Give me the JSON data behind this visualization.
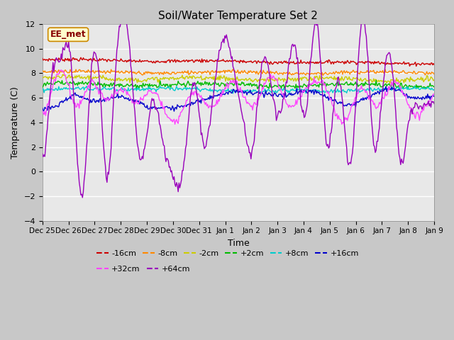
{
  "title": "Soil/Water Temperature Set 2",
  "xlabel": "Time",
  "ylabel": "Temperature (C)",
  "ylim": [
    -4,
    12
  ],
  "yticks": [
    -4,
    -2,
    0,
    2,
    4,
    6,
    8,
    10,
    12
  ],
  "fig_bg": "#c8c8c8",
  "plot_bg": "#e8e8e8",
  "annotation_text": "EE_met",
  "annotation_bg": "#ffffcc",
  "annotation_border": "#cc8800",
  "colors": {
    "-16cm": "#cc0000",
    "-8cm": "#ff8800",
    "-2cm": "#cccc00",
    "+2cm": "#00bb00",
    "+8cm": "#00cccc",
    "+16cm": "#0000cc",
    "+32cm": "#ff44ff",
    "+64cm": "#9900bb"
  },
  "xtick_labels": [
    "Dec 25",
    "Dec 26",
    "Dec 27",
    "Dec 28",
    "Dec 29",
    "Dec 30",
    "Dec 31",
    "Jan 1",
    "Jan 2",
    "Jan 3",
    "Jan 4",
    "Jan 5",
    "Jan 6",
    "Jan 7",
    "Jan 8",
    "Jan 9"
  ],
  "n_points": 480,
  "legend_order": [
    "-16cm",
    "-8cm",
    "-2cm",
    "+2cm",
    "+8cm",
    "+16cm",
    "+32cm",
    "+64cm"
  ]
}
